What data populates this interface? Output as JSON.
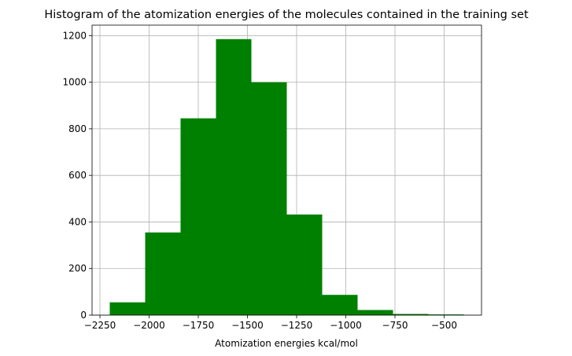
{
  "chart_data": {
    "type": "bar",
    "title": "Histogram of the atomization energies of the molecules contained in the training set",
    "xlabel": "Atomization energies kcal/mol",
    "ylabel": "",
    "bins": [
      {
        "x0": -2200,
        "x1": -2020,
        "count": 55
      },
      {
        "x0": -2020,
        "x1": -1840,
        "count": 355
      },
      {
        "x0": -1840,
        "x1": -1660,
        "count": 845
      },
      {
        "x0": -1660,
        "x1": -1480,
        "count": 1185
      },
      {
        "x0": -1480,
        "x1": -1300,
        "count": 1000
      },
      {
        "x0": -1300,
        "x1": -1120,
        "count": 432
      },
      {
        "x0": -1120,
        "x1": -940,
        "count": 87
      },
      {
        "x0": -940,
        "x1": -760,
        "count": 22
      },
      {
        "x0": -760,
        "x1": -580,
        "count": 5
      },
      {
        "x0": -580,
        "x1": -400,
        "count": 3
      }
    ],
    "xlim": [
      -2290,
      -310
    ],
    "ylim": [
      0,
      1245
    ],
    "xticks": [
      -2250,
      -2000,
      -1750,
      -1500,
      -1250,
      -1000,
      -750,
      -500
    ],
    "xtick_labels": [
      "−2250",
      "−2000",
      "−1750",
      "−1500",
      "−1250",
      "−1000",
      "−750",
      "−500"
    ],
    "yticks": [
      0,
      200,
      400,
      600,
      800,
      1000,
      1200
    ],
    "ytick_labels": [
      "0",
      "200",
      "400",
      "600",
      "800",
      "1000",
      "1200"
    ],
    "grid": true,
    "bar_color": "#008000"
  }
}
